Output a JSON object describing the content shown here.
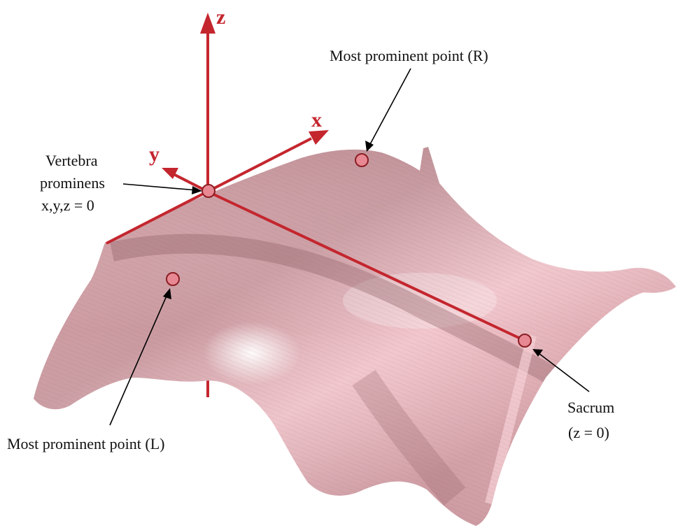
{
  "figure": {
    "axes": {
      "z_label": "z",
      "x_label": "x",
      "y_label": "y",
      "color": "#c4262e"
    },
    "surface": {
      "color": "#e9b6bd"
    },
    "points": {
      "color": "#e88892",
      "outline": "#8a1e24"
    },
    "annotations": {
      "vertebra_line1": "Vertebra",
      "vertebra_line2": "prominens",
      "vertebra_line3": "x,y,z = 0",
      "most_prominent_r": "Most prominent point (R)",
      "most_prominent_l": "Most prominent point (L)",
      "sacrum_line1": "Sacrum",
      "sacrum_line2": "(z = 0)"
    }
  }
}
